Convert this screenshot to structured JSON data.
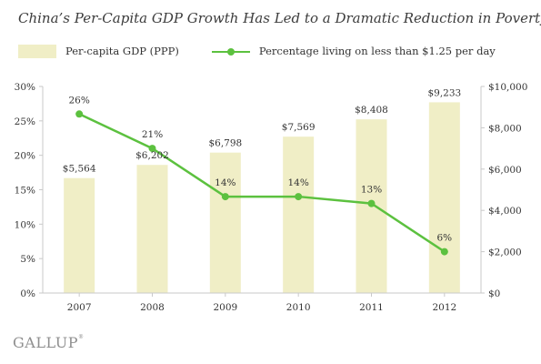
{
  "title": "China’s Per-Capita GDP Growth Has Led to a Dramatic Reduction in Poverty",
  "source_logo": "GALLUP",
  "colors": {
    "bar": "#f0eec6",
    "line": "#5cc13f",
    "axis": "#c9c9c9",
    "text": "#333333"
  },
  "chart_data": {
    "type": "bar",
    "categories": [
      "2007",
      "2008",
      "2009",
      "2010",
      "2011",
      "2012"
    ],
    "series": [
      {
        "name": "Per-capita GDP (PPP)",
        "type": "bar",
        "axis": "right",
        "values": [
          5564,
          6202,
          6798,
          7569,
          8408,
          9233
        ],
        "labels": [
          "$5,564",
          "$6,202",
          "$6,798",
          "$7,569",
          "$8,408",
          "$9,233"
        ]
      },
      {
        "name": "Percentage living on less than $1.25 per day",
        "type": "line",
        "axis": "left",
        "values": [
          26,
          21,
          14,
          14,
          13,
          6
        ],
        "labels": [
          "26%",
          "21%",
          "14%",
          "14%",
          "13%",
          "6%"
        ]
      }
    ],
    "y_left": {
      "lim": [
        0,
        30
      ],
      "ticks": [
        0,
        5,
        10,
        15,
        20,
        25,
        30
      ],
      "tick_labels": [
        "0%",
        "5%",
        "10%",
        "15%",
        "20%",
        "25%",
        "30%"
      ]
    },
    "y_right": {
      "lim": [
        0,
        10000
      ],
      "ticks": [
        0,
        2000,
        4000,
        6000,
        8000,
        10000
      ],
      "tick_labels": [
        "$0",
        "$2,000",
        "$4,000",
        "$6,000",
        "$8,000",
        "$10,000"
      ]
    },
    "grid": false,
    "legend": "top-left"
  }
}
